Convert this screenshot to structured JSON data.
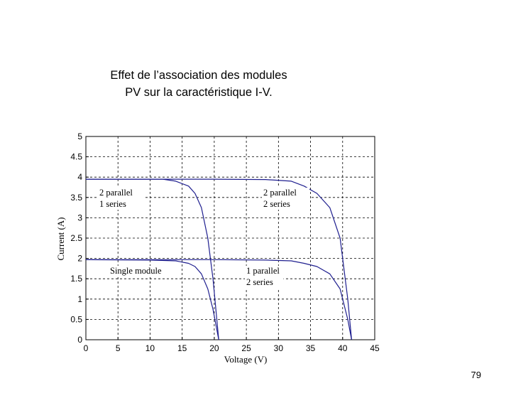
{
  "slide": {
    "title_line1": "Effet de l’association des modules",
    "title_line2": "PV sur la caractéristique  I-V.",
    "page_number": "79"
  },
  "chart_data": {
    "type": "line",
    "title": "",
    "xlabel": "Voltage (V)",
    "ylabel": "Current (A)",
    "xlim": [
      0,
      45
    ],
    "ylim": [
      0,
      5
    ],
    "xticks": [
      0,
      5,
      10,
      15,
      20,
      25,
      30,
      35,
      40,
      45
    ],
    "xtick_labels": [
      "0",
      "5",
      "10",
      "15",
      "20",
      "25",
      "30",
      "35",
      "40",
      "45"
    ],
    "yticks": [
      0,
      0.5,
      1,
      1.5,
      2,
      2.5,
      3,
      3.5,
      4,
      4.5,
      5
    ],
    "ytick_labels": [
      "0",
      "0.5",
      "1",
      "1.5",
      "2",
      "2.5",
      "3",
      "3.5",
      "4",
      "4.5",
      "5"
    ],
    "grid": true,
    "line_color": "#1f1f8f",
    "series": [
      {
        "label_lines": [
          "Single module"
        ],
        "x": [
          0,
          10,
          14,
          16,
          17,
          18,
          19,
          19.8,
          20.4,
          20.7
        ],
        "y": [
          1.97,
          1.96,
          1.94,
          1.88,
          1.8,
          1.62,
          1.25,
          0.75,
          0.25,
          0
        ]
      },
      {
        "label_lines": [
          "2 parallel",
          "1 series"
        ],
        "x": [
          0,
          12,
          14,
          16,
          17,
          18,
          19,
          19.8,
          20.4,
          20.7
        ],
        "y": [
          3.95,
          3.95,
          3.9,
          3.78,
          3.6,
          3.25,
          2.5,
          1.5,
          0.5,
          0
        ]
      },
      {
        "label_lines": [
          "1 parallel",
          "2 series"
        ],
        "x": [
          0,
          20,
          28,
          32,
          34,
          36,
          38,
          39.6,
          40.8,
          41.4
        ],
        "y": [
          1.97,
          1.97,
          1.96,
          1.94,
          1.88,
          1.8,
          1.62,
          1.25,
          0.5,
          0
        ]
      },
      {
        "label_lines": [
          "2 parallel",
          "2 series"
        ],
        "x": [
          0,
          20,
          28,
          32,
          34,
          36,
          38,
          39.6,
          40.8,
          41.4
        ],
        "y": [
          3.95,
          3.95,
          3.94,
          3.9,
          3.78,
          3.6,
          3.25,
          2.5,
          1.0,
          0
        ]
      }
    ]
  }
}
